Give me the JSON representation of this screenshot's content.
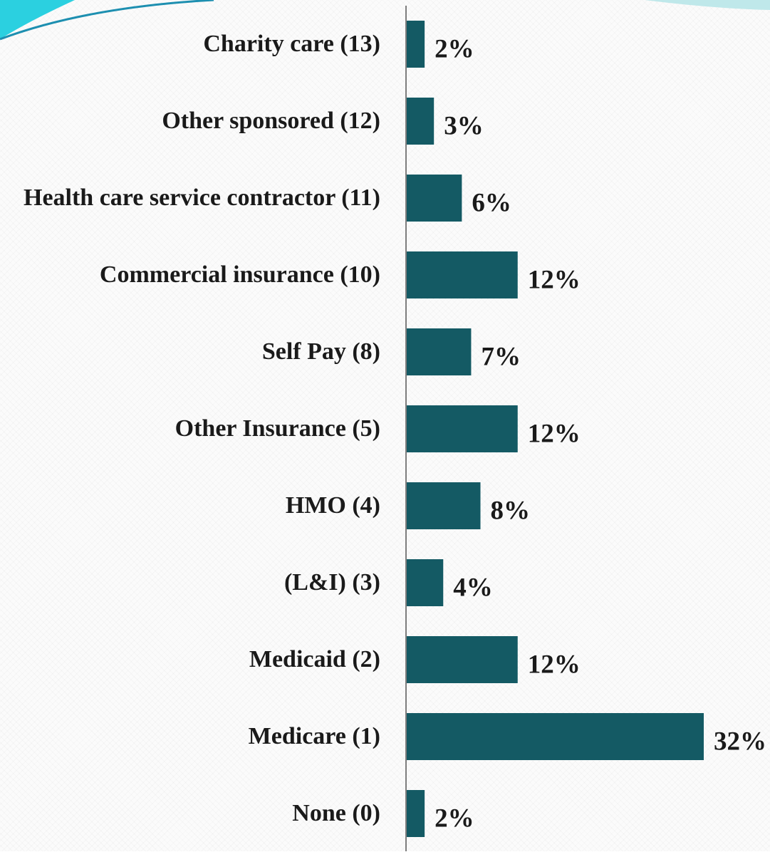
{
  "chart_data": {
    "type": "hbar",
    "categories": [
      "Charity care (13)",
      "Other sponsored (12)",
      "Health care service contractor (11)",
      "Commercial insurance (10)",
      "Self Pay (8)",
      "Other Insurance (5)",
      "HMO (4)",
      "(L&I) (3)",
      "Medicaid (2)",
      "Medicare (1)",
      "None (0)"
    ],
    "values": [
      2,
      3,
      6,
      12,
      7,
      12,
      8,
      4,
      12,
      32,
      2
    ],
    "value_labels": [
      "2%",
      "3%",
      "6%",
      "12%",
      "7%",
      "12%",
      "8%",
      "4%",
      "12%",
      "32%",
      "2%"
    ],
    "color": "#145a64"
  }
}
